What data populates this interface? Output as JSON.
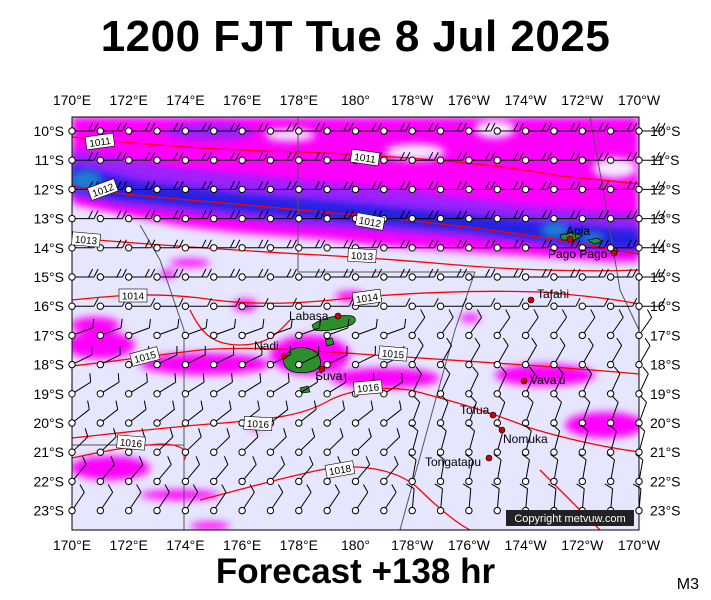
{
  "title": "1200 FJT Tue 8 Jul 2025",
  "footer": "Forecast +138 hr",
  "model_code": "M3",
  "copyright": "Copyright metvuw.com",
  "lon_labels": [
    "170°E",
    "172°E",
    "174°E",
    "176°E",
    "178°E",
    "180°",
    "178°W",
    "176°W",
    "174°W",
    "172°W",
    "170°W"
  ],
  "lat_labels": [
    "10°S",
    "11°S",
    "12°S",
    "13°S",
    "14°S",
    "15°S",
    "16°S",
    "17°S",
    "18°S",
    "19°S",
    "20°S",
    "21°S",
    "22°S",
    "23°S"
  ],
  "isobar_labels": [
    "1011",
    "1011",
    "1012",
    "1012",
    "1013",
    "1013",
    "1014",
    "1014",
    "1015",
    "1015",
    "1016",
    "1016",
    "1016",
    "1018"
  ],
  "places": [
    "Apia",
    "Pago Pago",
    "Tafahi",
    "Labasa",
    "Nadi",
    "Suva",
    "Vava'u",
    "Tofua",
    "Nomuka",
    "Tongatapu"
  ],
  "colors": {
    "background_rain_free": "#e6e6ff",
    "rain_light": "#ff00ff",
    "rain_moderate": "#9a20ff",
    "rain_heavy": "#2020e0",
    "rain_extreme": "#1a7fd0",
    "isobar": "#ff0000",
    "wind_barb": "#000000"
  }
}
